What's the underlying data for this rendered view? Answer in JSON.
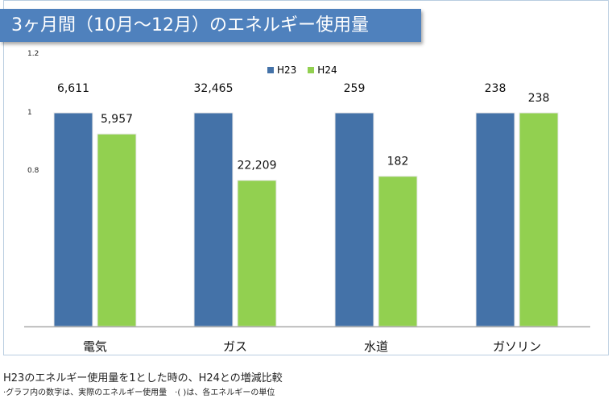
{
  "title": "3ヶ月間（10月〜12月）のエネルギー使用量",
  "notes": {
    "line1": "H23のエネルギー使用量を1とした時の、H24との増減比較",
    "line2": "·グラフ内の数字は、実際のエネルギー使用量　·( )は、各エネルギーの単位"
  },
  "chart_data": {
    "type": "bar",
    "categories": [
      "電気",
      "ガス",
      "水道",
      "ガソリン"
    ],
    "series": [
      {
        "name": "H23",
        "color": "#4472a8",
        "values": [
          1,
          1,
          1,
          1
        ],
        "labels": [
          "6,611",
          "32,465",
          "259",
          "238"
        ]
      },
      {
        "name": "H24",
        "color": "#92d050",
        "values": [
          0.901,
          0.684,
          0.703,
          1
        ],
        "labels": [
          "5,957",
          "22,209",
          "182",
          "238"
        ]
      }
    ],
    "yticks": [
      "1.2",
      "1",
      "0.8"
    ],
    "ylim": [
      0,
      1.2
    ],
    "legend": "top-center",
    "grid": false
  }
}
